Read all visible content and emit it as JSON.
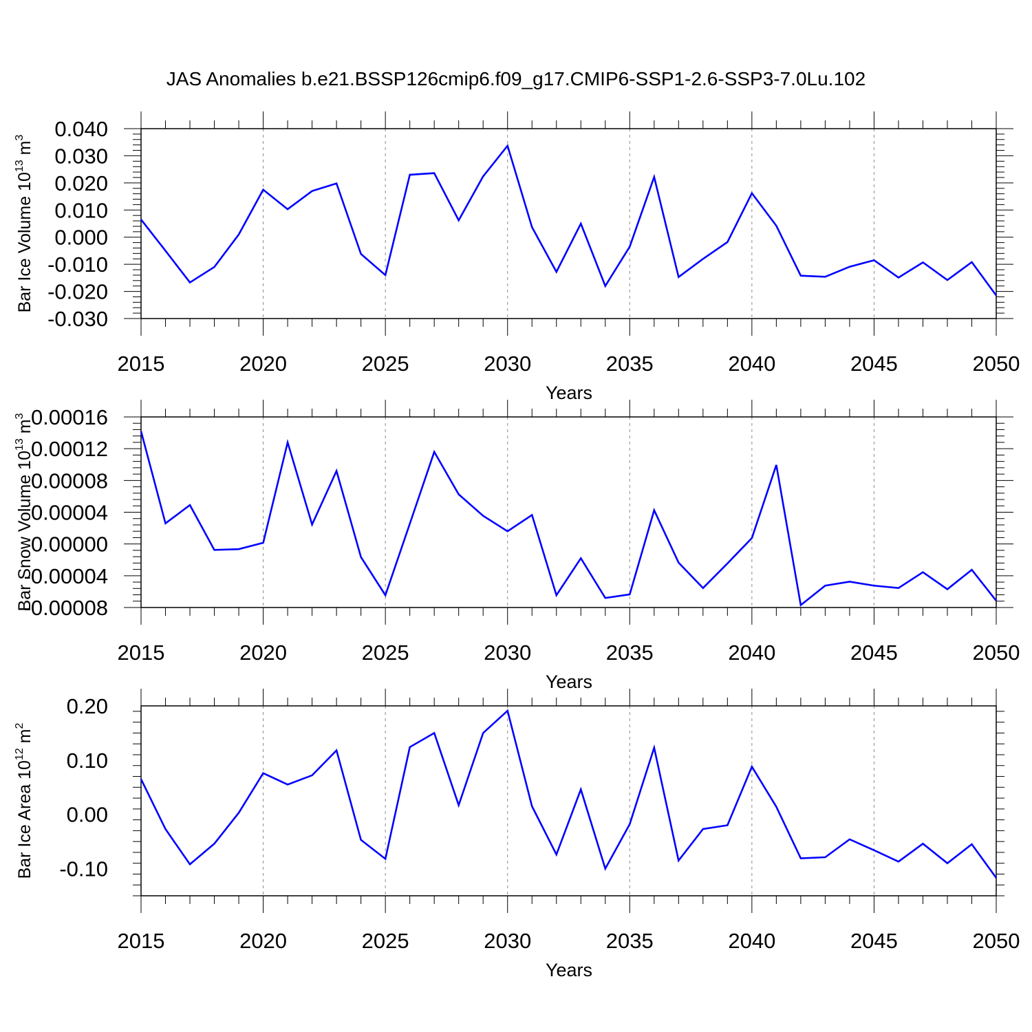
{
  "figure": {
    "title": "JAS Anomalies b.e21.BSSP126cmip6.f09_g17.CMIP6-SSP1-2.6-SSP3-7.0Lu.102",
    "line_color": "#0000ff",
    "grid_color": "#888888"
  },
  "chart_data": [
    {
      "type": "line",
      "ylabel": "Bar Ice Volume 10",
      "ylabel_exp": "13",
      "ylabel_unit": " m",
      "ylabel_unit_exp": "3",
      "xlabel": "Years",
      "xlim": [
        2015,
        2050
      ],
      "ylim": [
        -0.03,
        0.04
      ],
      "yticks": [
        -0.03,
        -0.02,
        -0.01,
        0.0,
        0.01,
        0.02,
        0.03,
        0.04
      ],
      "ytick_labels": [
        "-0.030",
        "-0.020",
        "-0.010",
        "0.000",
        "0.010",
        "0.020",
        "0.030",
        "0.040"
      ],
      "xticks": [
        2015,
        2020,
        2025,
        2030,
        2035,
        2040,
        2045,
        2050
      ],
      "xtick_labels": [
        "2015",
        "2020",
        "2025",
        "2030",
        "2035",
        "2040",
        "2045",
        "2050"
      ],
      "x": [
        2015,
        2016,
        2017,
        2018,
        2019,
        2020,
        2021,
        2022,
        2023,
        2024,
        2025,
        2026,
        2027,
        2028,
        2029,
        2030,
        2031,
        2032,
        2033,
        2034,
        2035,
        2036,
        2037,
        2038,
        2039,
        2040,
        2041,
        2042,
        2043,
        2044,
        2045,
        2046,
        2047,
        2048,
        2049,
        2050
      ],
      "series": [
        {
          "name": "Bar Ice Volume",
          "values": [
            0.0065,
            -0.005,
            -0.0167,
            -0.011,
            0.001,
            0.0175,
            0.0103,
            0.017,
            0.0198,
            -0.0062,
            -0.014,
            0.023,
            0.0236,
            0.0062,
            0.0224,
            0.0337,
            0.0037,
            -0.0128,
            0.005,
            -0.018,
            -0.0035,
            0.0222,
            -0.0147,
            -0.008,
            -0.0018,
            0.0162,
            0.0042,
            -0.0142,
            -0.0146,
            -0.0109,
            -0.0085,
            -0.0149,
            -0.0093,
            -0.0158,
            -0.0092,
            -0.0215
          ]
        }
      ]
    },
    {
      "type": "line",
      "ylabel": "Bar Snow Volume 10",
      "ylabel_exp": "13",
      "ylabel_unit": " m",
      "ylabel_unit_exp": "3",
      "xlabel": "Years",
      "xlim": [
        2015,
        2050
      ],
      "ylim": [
        -8e-05,
        0.00016
      ],
      "yticks": [
        -8e-05,
        -4e-05,
        0.0,
        4e-05,
        8e-05,
        0.00012,
        0.00016
      ],
      "ytick_labels": [
        "-0.00008",
        "-0.00004",
        "0.00000",
        "0.00004",
        "0.00008",
        "0.00012",
        "0.00016"
      ],
      "xticks": [
        2015,
        2020,
        2025,
        2030,
        2035,
        2040,
        2045,
        2050
      ],
      "xtick_labels": [
        "2015",
        "2020",
        "2025",
        "2030",
        "2035",
        "2040",
        "2045",
        "2050"
      ],
      "x": [
        2015,
        2016,
        2017,
        2018,
        2019,
        2020,
        2021,
        2022,
        2023,
        2024,
        2025,
        2026,
        2027,
        2028,
        2029,
        2030,
        2031,
        2032,
        2033,
        2034,
        2035,
        2036,
        2037,
        2038,
        2039,
        2040,
        2041,
        2042,
        2043,
        2044,
        2045,
        2046,
        2047,
        2048,
        2049,
        2050
      ],
      "series": [
        {
          "name": "Bar Snow Volume",
          "values": [
            0.000142,
            2.6e-05,
            4.9e-05,
            -7.5e-06,
            -6.5e-06,
            1.5e-06,
            0.000128,
            2.45e-05,
            9.2e-05,
            -1.65e-05,
            -6.45e-05,
            2.55e-05,
            0.000116,
            6.25e-05,
            3.55e-05,
            1.6e-05,
            3.65e-05,
            -6.45e-05,
            -1.8e-05,
            -6.8e-05,
            -6.35e-05,
            4.25e-05,
            -2.35e-05,
            -5.55e-05,
            -2.45e-05,
            7.5e-06,
            9.95e-05,
            -7.7e-05,
            -5.25e-05,
            -4.75e-05,
            -5.25e-05,
            -5.55e-05,
            -3.55e-05,
            -5.7e-05,
            -3.25e-05,
            -7.15e-05
          ]
        }
      ]
    },
    {
      "type": "line",
      "ylabel": "Bar Ice Area 10",
      "ylabel_exp": "12",
      "ylabel_unit": " m",
      "ylabel_unit_exp": "2",
      "xlabel": "Years",
      "xlim": [
        2015,
        2050
      ],
      "ylim": [
        -0.15,
        0.2
      ],
      "yticks": [
        -0.1,
        0.0,
        0.1,
        0.2
      ],
      "ytick_labels": [
        "-0.10",
        "0.00",
        "0.10",
        "0.20"
      ],
      "xticks": [
        2015,
        2020,
        2025,
        2030,
        2035,
        2040,
        2045,
        2050
      ],
      "xtick_labels": [
        "2015",
        "2020",
        "2025",
        "2030",
        "2035",
        "2040",
        "2045",
        "2050"
      ],
      "x": [
        2015,
        2016,
        2017,
        2018,
        2019,
        2020,
        2021,
        2022,
        2023,
        2024,
        2025,
        2026,
        2027,
        2028,
        2029,
        2030,
        2031,
        2032,
        2033,
        2034,
        2035,
        2036,
        2037,
        2038,
        2039,
        2040,
        2041,
        2042,
        2043,
        2044,
        2045,
        2046,
        2047,
        2048,
        2049,
        2050
      ],
      "series": [
        {
          "name": "Bar Ice Area",
          "values": [
            0.065,
            -0.027,
            -0.092,
            -0.054,
            0.003,
            0.076,
            0.055,
            0.072,
            0.118,
            -0.047,
            -0.082,
            0.124,
            0.15,
            0.017,
            0.15,
            0.191,
            0.015,
            -0.074,
            0.046,
            -0.1,
            -0.018,
            0.123,
            -0.085,
            -0.027,
            -0.02,
            0.088,
            0.014,
            -0.081,
            -0.079,
            -0.046,
            -0.066,
            -0.087,
            -0.054,
            -0.09,
            -0.055,
            -0.117
          ]
        }
      ]
    }
  ]
}
